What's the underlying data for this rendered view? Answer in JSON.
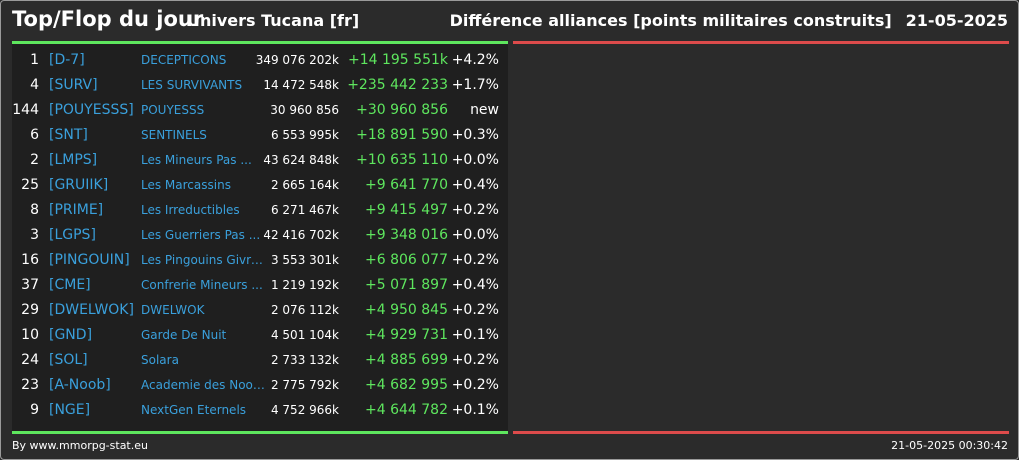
{
  "header": {
    "title": "Top/Flop du jour",
    "subtitle": "Univers Tucana [fr]",
    "right_title": "Différence alliances [points militaires construits]",
    "date": "21-05-2025"
  },
  "colors": {
    "background": "#2b2b2b",
    "panel": "#1f1f1f",
    "accent_green": "#5ee65e",
    "accent_red": "#dd4b4b",
    "link_blue": "#3aa0dc"
  },
  "top_rows": [
    {
      "rank": "1",
      "tag": "[D-7]",
      "name": "DECEPTICONS",
      "total": "349 076 202k",
      "diff": "+14 195 551k",
      "pct": "+4.2%"
    },
    {
      "rank": "4",
      "tag": "[SURV]",
      "name": "LES SURVIVANTS",
      "total": "14 472 548k",
      "diff": "+235 442 233",
      "pct": "+1.7%"
    },
    {
      "rank": "144",
      "tag": "[POUYESSS]",
      "name": "POUYESSS",
      "total": "30 960 856",
      "diff": "+30 960 856",
      "pct": "new"
    },
    {
      "rank": "6",
      "tag": "[SNT]",
      "name": "SENTINELS",
      "total": "6 553 995k",
      "diff": "+18 891 590",
      "pct": "+0.3%"
    },
    {
      "rank": "2",
      "tag": "[LMPS]",
      "name": "Les Mineurs Pas ...",
      "total": "43 624 848k",
      "diff": "+10 635 110",
      "pct": "+0.0%"
    },
    {
      "rank": "25",
      "tag": "[GRUIIK]",
      "name": "Les Marcassins",
      "total": "2 665 164k",
      "diff": "+9 641 770",
      "pct": "+0.4%"
    },
    {
      "rank": "8",
      "tag": "[PRIME]",
      "name": "Les Irreductibles",
      "total": "6 271 467k",
      "diff": "+9 415 497",
      "pct": "+0.2%"
    },
    {
      "rank": "3",
      "tag": "[LGPS]",
      "name": "Les Guerriers Pas ...",
      "total": "42 416 702k",
      "diff": "+9 348 016",
      "pct": "+0.0%"
    },
    {
      "rank": "16",
      "tag": "[PINGOUIN]",
      "name": "Les Pingouins Givre...",
      "total": "3 553 301k",
      "diff": "+6 806 077",
      "pct": "+0.2%"
    },
    {
      "rank": "37",
      "tag": "[CME]",
      "name": "Confrerie Mineurs ...",
      "total": "1 219 192k",
      "diff": "+5 071 897",
      "pct": "+0.4%"
    },
    {
      "rank": "29",
      "tag": "[DWELWOK]",
      "name": "DWELWOK",
      "total": "2 076 112k",
      "diff": "+4 950 845",
      "pct": "+0.2%"
    },
    {
      "rank": "10",
      "tag": "[GND]",
      "name": "Garde De Nuit",
      "total": "4 501 104k",
      "diff": "+4 929 731",
      "pct": "+0.1%"
    },
    {
      "rank": "24",
      "tag": "[SOL]",
      "name": "Solara",
      "total": "2 733 132k",
      "diff": "+4 885 699",
      "pct": "+0.2%"
    },
    {
      "rank": "23",
      "tag": "[A-Noob]",
      "name": "Academie des Noob...",
      "total": "2 775 792k",
      "diff": "+4 682 995",
      "pct": "+0.2%"
    },
    {
      "rank": "9",
      "tag": "[NGE]",
      "name": "NextGen Eternels",
      "total": "4 752 966k",
      "diff": "+4 644 782",
      "pct": "+0.1%"
    }
  ],
  "footer": {
    "source": "By www.mmorpg-stat.eu",
    "timestamp": "21-05-2025 00:30:42"
  }
}
